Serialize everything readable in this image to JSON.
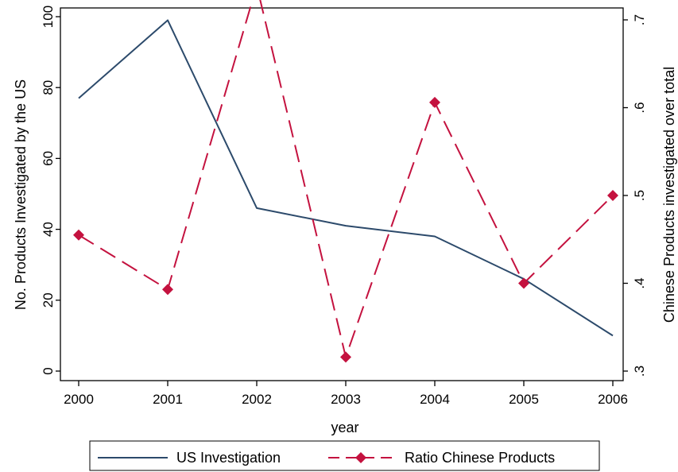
{
  "chart_data": {
    "type": "line",
    "x": [
      2000,
      2001,
      2002,
      2003,
      2004,
      2005,
      2006
    ],
    "xlabel": "year",
    "x_ticks": [
      "2000",
      "2001",
      "2002",
      "2003",
      "2004",
      "2005",
      "2006"
    ],
    "y_left": {
      "label": "No. Products Investigated by the US",
      "range": [
        0,
        100
      ],
      "ticks": [
        "0",
        "20",
        "40",
        "60",
        "80",
        "100"
      ]
    },
    "y_right": {
      "label": "Chinese Products investigated over total",
      "range": [
        0.3,
        0.7
      ],
      "ticks": [
        ".3",
        ".4",
        ".5",
        ".6",
        ".7"
      ]
    },
    "series": [
      {
        "name": "US Investigation",
        "axis": "left",
        "style": "solid",
        "marker": "none",
        "color": "#2c4a6b",
        "values": [
          77,
          99,
          46,
          41,
          38,
          26,
          10
        ]
      },
      {
        "name": "Ratio Chinese Products",
        "axis": "right",
        "style": "dashed",
        "marker": "diamond",
        "color": "#c4123f",
        "values": [
          0.455,
          0.393,
          0.739,
          0.316,
          0.606,
          0.4,
          0.5
        ]
      }
    ],
    "legend": {
      "position": "bottom",
      "items": [
        "US Investigation",
        "Ratio Chinese Products"
      ]
    },
    "grid": false
  }
}
